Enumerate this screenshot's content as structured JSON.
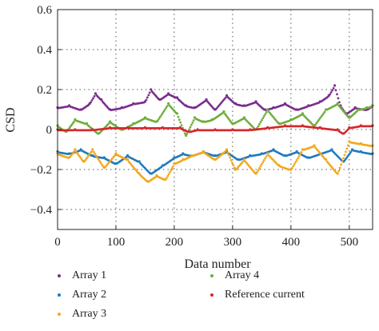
{
  "chart_data": {
    "type": "scatter",
    "title": "",
    "xlabel": "Data number",
    "ylabel": "CSD",
    "xlim": [
      0,
      540
    ],
    "ylim": [
      -0.5,
      0.6
    ],
    "x_ticks": [
      0,
      100,
      200,
      300,
      400,
      500
    ],
    "y_ticks": [
      -0.4,
      -0.2,
      0,
      0.2,
      0.4,
      0.6
    ],
    "y_tick_labels": [
      "−0.4",
      "−0.2",
      "0",
      "0.2",
      "0.4",
      "0.6"
    ],
    "grid": true,
    "grid_style": "dotted",
    "legend_position": "bottom",
    "series": [
      {
        "name": "Array 1",
        "color": "#7b2d8e",
        "x": [
          0,
          20,
          40,
          55,
          65,
          75,
          90,
          110,
          130,
          150,
          160,
          175,
          190,
          205,
          220,
          235,
          255,
          270,
          290,
          305,
          320,
          340,
          355,
          370,
          390,
          410,
          430,
          450,
          465,
          475,
          485,
          495,
          510,
          530,
          540
        ],
        "y": [
          0.11,
          0.12,
          0.1,
          0.13,
          0.18,
          0.15,
          0.1,
          0.11,
          0.13,
          0.14,
          0.2,
          0.15,
          0.18,
          0.16,
          0.12,
          0.11,
          0.15,
          0.1,
          0.17,
          0.13,
          0.12,
          0.14,
          0.1,
          0.11,
          0.13,
          0.1,
          0.12,
          0.14,
          0.17,
          0.22,
          0.12,
          0.08,
          0.11,
          0.1,
          0.12
        ]
      },
      {
        "name": "Array 2",
        "color": "#1f7abf",
        "x": [
          0,
          20,
          40,
          60,
          80,
          100,
          120,
          140,
          160,
          180,
          200,
          215,
          230,
          250,
          270,
          290,
          310,
          330,
          350,
          370,
          390,
          410,
          430,
          450,
          470,
          490,
          505,
          520,
          540
        ],
        "y": [
          -0.11,
          -0.12,
          -0.1,
          -0.13,
          -0.14,
          -0.17,
          -0.13,
          -0.16,
          -0.22,
          -0.18,
          -0.14,
          -0.12,
          -0.13,
          -0.11,
          -0.13,
          -0.11,
          -0.15,
          -0.13,
          -0.12,
          -0.1,
          -0.13,
          -0.11,
          -0.14,
          -0.12,
          -0.1,
          -0.16,
          -0.1,
          -0.11,
          -0.12
        ]
      },
      {
        "name": "Array 3",
        "color": "#f2a81d",
        "x": [
          0,
          20,
          30,
          45,
          60,
          80,
          100,
          120,
          140,
          155,
          170,
          185,
          200,
          215,
          230,
          250,
          270,
          290,
          305,
          320,
          340,
          360,
          380,
          400,
          420,
          440,
          460,
          480,
          500,
          520,
          540
        ],
        "y": [
          -0.12,
          -0.14,
          -0.1,
          -0.16,
          -0.1,
          -0.19,
          -0.12,
          -0.15,
          -0.22,
          -0.26,
          -0.23,
          -0.25,
          -0.17,
          -0.15,
          -0.13,
          -0.11,
          -0.15,
          -0.1,
          -0.2,
          -0.15,
          -0.22,
          -0.12,
          -0.18,
          -0.2,
          -0.1,
          -0.08,
          -0.15,
          -0.22,
          -0.06,
          -0.07,
          -0.08
        ]
      },
      {
        "name": "Array 4",
        "color": "#6fad3c",
        "x": [
          0,
          15,
          30,
          50,
          70,
          90,
          110,
          130,
          150,
          170,
          190,
          205,
          220,
          235,
          250,
          265,
          285,
          300,
          320,
          340,
          360,
          380,
          400,
          420,
          440,
          460,
          480,
          500,
          515,
          530,
          540
        ],
        "y": [
          0.02,
          -0.01,
          0.05,
          0.03,
          -0.02,
          0.04,
          0.0,
          0.03,
          0.06,
          0.04,
          0.13,
          0.08,
          -0.03,
          0.06,
          0.04,
          0.05,
          0.09,
          0.03,
          0.06,
          0.0,
          0.1,
          0.03,
          0.05,
          0.08,
          0.02,
          0.1,
          0.13,
          0.06,
          0.1,
          0.11,
          0.12
        ]
      },
      {
        "name": "Reference current",
        "color": "#d6262b",
        "x": [
          0,
          30,
          60,
          90,
          120,
          150,
          180,
          210,
          225,
          240,
          270,
          300,
          330,
          360,
          390,
          420,
          450,
          480,
          490,
          500,
          520,
          540
        ],
        "y": [
          0.0,
          0.0,
          0.0,
          0.01,
          0.01,
          0.01,
          0.01,
          0.01,
          -0.01,
          0.0,
          0.0,
          0.0,
          0.0,
          0.01,
          0.02,
          0.02,
          0.01,
          0.0,
          -0.02,
          0.01,
          0.02,
          0.02
        ]
      }
    ]
  }
}
